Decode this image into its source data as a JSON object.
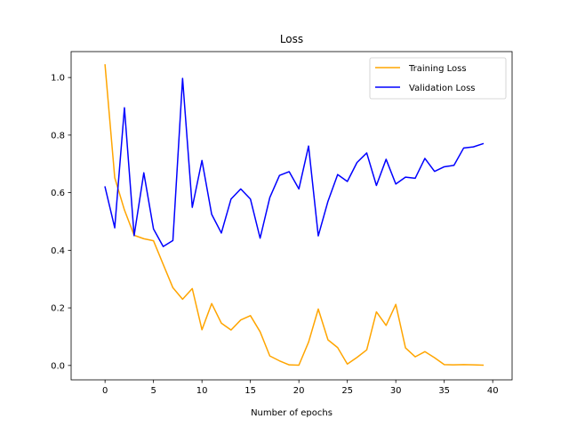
{
  "chart_data": {
    "type": "line",
    "title": "Loss",
    "xlabel": "Number of epochs",
    "ylabel": "",
    "xlim": [
      -3.5,
      42
    ],
    "ylim": [
      -0.05,
      1.09
    ],
    "xticks": [
      0,
      5,
      10,
      15,
      20,
      25,
      30,
      35,
      40
    ],
    "yticks": [
      0.0,
      0.2,
      0.4,
      0.6,
      0.8,
      1.0
    ],
    "xtick_labels": [
      "0",
      "5",
      "10",
      "15",
      "20",
      "25",
      "30",
      "35",
      "40"
    ],
    "ytick_labels": [
      "0.0",
      "0.2",
      "0.4",
      "0.6",
      "0.8",
      "1.0"
    ],
    "grid": false,
    "legend_position": "top-right",
    "x": [
      0,
      1,
      2,
      3,
      4,
      5,
      6,
      7,
      8,
      9,
      10,
      11,
      12,
      13,
      14,
      15,
      16,
      17,
      18,
      19,
      20,
      21,
      22,
      23,
      24,
      25,
      26,
      27,
      28,
      29,
      30,
      31,
      32,
      33,
      34,
      35,
      36,
      37,
      38,
      39
    ],
    "series": [
      {
        "name": "Training Loss",
        "color": "#ffa500",
        "values": [
          1.044,
          0.652,
          0.54,
          0.452,
          0.44,
          0.433,
          0.351,
          0.27,
          0.23,
          0.267,
          0.124,
          0.215,
          0.147,
          0.123,
          0.158,
          0.173,
          0.117,
          0.033,
          0.016,
          0.002,
          0.001,
          0.081,
          0.196,
          0.089,
          0.062,
          0.005,
          0.028,
          0.054,
          0.186,
          0.139,
          0.212,
          0.061,
          0.03,
          0.048,
          0.027,
          0.003,
          0.002,
          0.003,
          0.002,
          0.001
        ]
      },
      {
        "name": "Validation Loss",
        "color": "#0000ff",
        "values": [
          0.62,
          0.478,
          0.895,
          0.451,
          0.669,
          0.474,
          0.413,
          0.434,
          0.997,
          0.549,
          0.712,
          0.525,
          0.46,
          0.578,
          0.613,
          0.578,
          0.442,
          0.583,
          0.66,
          0.673,
          0.613,
          0.762,
          0.45,
          0.57,
          0.663,
          0.639,
          0.705,
          0.738,
          0.625,
          0.716,
          0.63,
          0.654,
          0.65,
          0.719,
          0.674,
          0.69,
          0.695,
          0.755,
          0.759,
          0.77
        ]
      }
    ]
  }
}
